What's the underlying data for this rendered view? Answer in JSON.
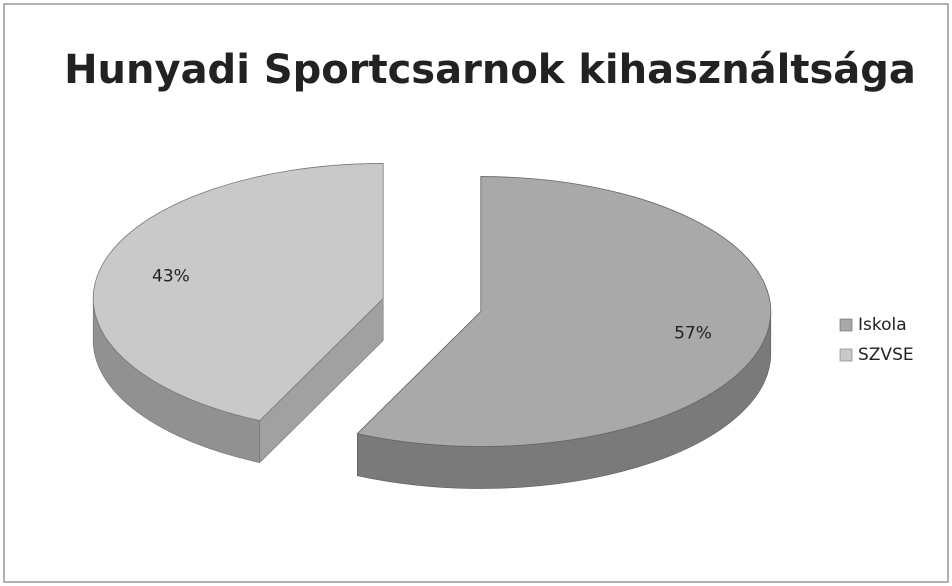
{
  "chart_data": {
    "type": "pie",
    "title": "Hunyadi Sportcsarnok kihasználtsága",
    "categories": [
      "Iskola",
      "SZVSE"
    ],
    "values": [
      57,
      43
    ],
    "value_labels": [
      "57%",
      "43%"
    ],
    "colors": [
      "#a9a9a9",
      "#c9c9c9"
    ],
    "legend": "right"
  }
}
